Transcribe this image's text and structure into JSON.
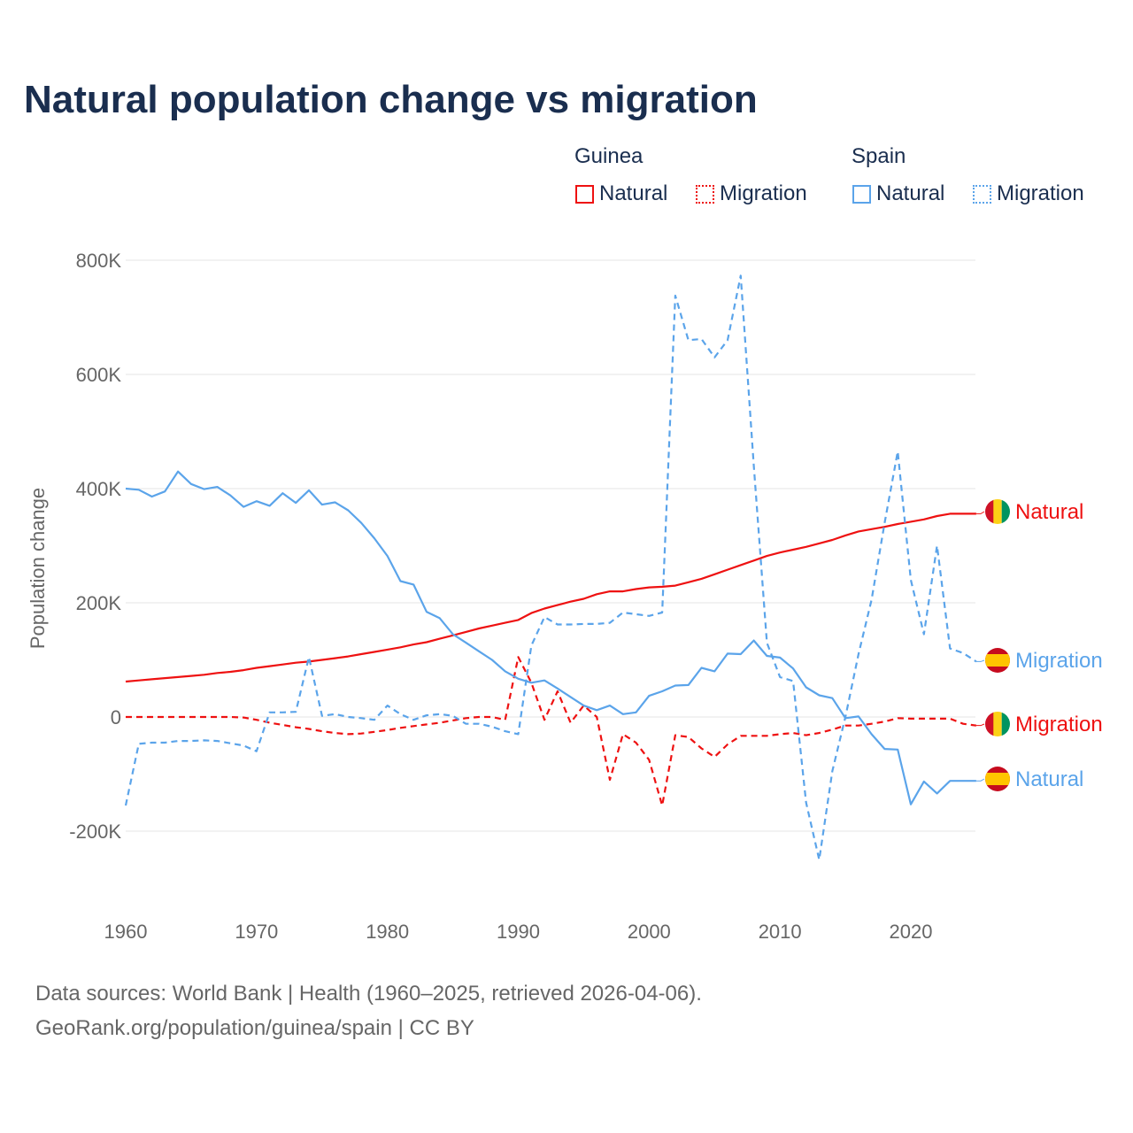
{
  "title": "Natural population change vs migration",
  "legend": {
    "groups": [
      {
        "name": "Guinea",
        "items": [
          "Natural",
          "Migration"
        ]
      },
      {
        "name": "Spain",
        "items": [
          "Natural",
          "Migration"
        ]
      }
    ]
  },
  "source_line1": "Data sources: World Bank | Health (1960–2025, retrieved 2026-04-06).",
  "source_line2": "GeoRank.org/population/guinea/spain | CC BY",
  "colors": {
    "guinea": "#ee1111",
    "spain": "#5ba4ea"
  },
  "chart_data": {
    "type": "line",
    "title": "Natural population change vs migration",
    "xlabel": "",
    "ylabel": "Population change",
    "xlim": [
      1960,
      2025
    ],
    "ylim": [
      -250000,
      800000
    ],
    "xticks": [
      1960,
      1970,
      1980,
      1990,
      2000,
      2010,
      2020
    ],
    "xtick_labels": [
      "1960",
      "1970",
      "1980",
      "1990",
      "2000",
      "2010",
      "2020"
    ],
    "yticks": [
      -200000,
      0,
      200000,
      400000,
      600000,
      800000
    ],
    "ytick_labels": [
      "-200K",
      "0",
      "200K",
      "400K",
      "600K",
      "800K"
    ],
    "x_start": 1960,
    "series": [
      {
        "name": "Guinea Natural",
        "end_label": "Natural",
        "country": "guinea",
        "dashed": false,
        "values_k": [
          62,
          64,
          66,
          68,
          70,
          72,
          74,
          77,
          79,
          82,
          86,
          89,
          92,
          95,
          97,
          100,
          103,
          106,
          110,
          114,
          118,
          122,
          127,
          131,
          137,
          143,
          149,
          155,
          160,
          165,
          170,
          182,
          190,
          196,
          202,
          207,
          215,
          220,
          220,
          224,
          227,
          228,
          230,
          236,
          242,
          250,
          258,
          266,
          274,
          282,
          288,
          293,
          298,
          304,
          310,
          318,
          325,
          329,
          333,
          338,
          342,
          346,
          352,
          356,
          356,
          356
        ]
      },
      {
        "name": "Guinea Migration",
        "end_label": "Migration",
        "country": "guinea",
        "dashed": true,
        "values_k": [
          0,
          0,
          0,
          0,
          0,
          0,
          0,
          0,
          0,
          -1,
          -5,
          -10,
          -14,
          -18,
          -21,
          -25,
          -28,
          -30,
          -29,
          -26,
          -23,
          -19,
          -16,
          -13,
          -10,
          -6,
          -2,
          0,
          0,
          -5,
          105,
          60,
          -5,
          45,
          -10,
          20,
          0,
          -110,
          -30,
          -45,
          -75,
          -155,
          -32,
          -35,
          -55,
          -70,
          -48,
          -33,
          -33,
          -33,
          -30,
          -28,
          -32,
          -28,
          -22,
          -15,
          -15,
          -12,
          -8,
          -2,
          -3,
          -3,
          -3,
          -3,
          -12,
          -15
        ]
      },
      {
        "name": "Spain Natural",
        "end_label": "Natural",
        "country": "spain",
        "dashed": false,
        "values_k": [
          400,
          398,
          386,
          395,
          430,
          408,
          399,
          403,
          388,
          368,
          378,
          370,
          392,
          375,
          397,
          372,
          376,
          362,
          340,
          313,
          282,
          238,
          232,
          184,
          173,
          145,
          130,
          115,
          100,
          80,
          67,
          60,
          64,
          50,
          35,
          20,
          12,
          20,
          5,
          8,
          37,
          45,
          55,
          56,
          86,
          80,
          111,
          110,
          134,
          107,
          104,
          85,
          52,
          38,
          33,
          -2,
          1,
          -30,
          -56,
          -57,
          -153,
          -113,
          -134,
          -112,
          -112,
          -112
        ]
      },
      {
        "name": "Spain Migration",
        "end_label": "Migration",
        "country": "spain",
        "dashed": true,
        "values_k": [
          -155,
          -47,
          -45,
          -45,
          -42,
          -42,
          -41,
          -42,
          -46,
          -50,
          -60,
          8,
          8,
          9,
          105,
          2,
          5,
          0,
          -2,
          -5,
          20,
          5,
          -5,
          3,
          5,
          2,
          -12,
          -12,
          -17,
          -25,
          -30,
          125,
          175,
          162,
          162,
          163,
          163,
          165,
          183,
          180,
          177,
          183,
          738,
          660,
          662,
          630,
          660,
          773,
          440,
          130,
          70,
          63,
          -150,
          -250,
          -95,
          0,
          110,
          205,
          340,
          465,
          240,
          145,
          300,
          120,
          112,
          97
        ]
      }
    ]
  }
}
